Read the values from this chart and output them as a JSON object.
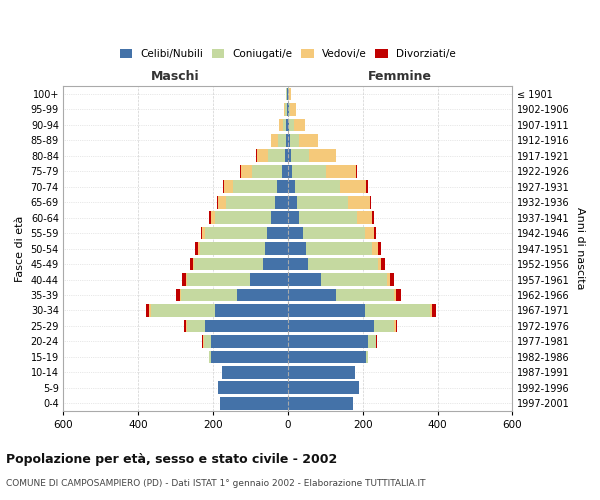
{
  "age_groups": [
    "0-4",
    "5-9",
    "10-14",
    "15-19",
    "20-24",
    "25-29",
    "30-34",
    "35-39",
    "40-44",
    "45-49",
    "50-54",
    "55-59",
    "60-64",
    "65-69",
    "70-74",
    "75-79",
    "80-84",
    "85-89",
    "90-94",
    "95-99",
    "100+"
  ],
  "birth_years": [
    "1997-2001",
    "1992-1996",
    "1987-1991",
    "1982-1986",
    "1977-1981",
    "1972-1976",
    "1967-1971",
    "1962-1966",
    "1957-1961",
    "1952-1956",
    "1947-1951",
    "1942-1946",
    "1937-1941",
    "1932-1936",
    "1927-1931",
    "1922-1926",
    "1917-1921",
    "1912-1916",
    "1907-1911",
    "1902-1906",
    "≤ 1901"
  ],
  "males": {
    "celibi": [
      180,
      185,
      175,
      205,
      205,
      220,
      195,
      135,
      100,
      65,
      60,
      55,
      45,
      35,
      30,
      15,
      8,
      5,
      4,
      3,
      2
    ],
    "coniugati": [
      0,
      0,
      0,
      5,
      20,
      50,
      170,
      150,
      170,
      185,
      175,
      165,
      150,
      130,
      115,
      80,
      45,
      20,
      10,
      4,
      2
    ],
    "vedovi": [
      0,
      0,
      0,
      0,
      1,
      3,
      5,
      3,
      3,
      3,
      5,
      8,
      10,
      20,
      25,
      30,
      30,
      20,
      10,
      4,
      1
    ],
    "divorziati": [
      0,
      0,
      0,
      0,
      2,
      5,
      8,
      10,
      10,
      8,
      8,
      5,
      5,
      3,
      2,
      2,
      1,
      1,
      0,
      0,
      0
    ]
  },
  "females": {
    "nubili": [
      175,
      190,
      180,
      210,
      215,
      230,
      205,
      130,
      90,
      55,
      50,
      40,
      30,
      25,
      20,
      12,
      8,
      5,
      4,
      3,
      2
    ],
    "coniugate": [
      0,
      0,
      0,
      5,
      20,
      55,
      175,
      155,
      175,
      185,
      175,
      165,
      155,
      135,
      120,
      90,
      50,
      25,
      12,
      4,
      2
    ],
    "vedove": [
      0,
      0,
      0,
      0,
      2,
      3,
      5,
      5,
      8,
      10,
      15,
      25,
      40,
      60,
      70,
      80,
      70,
      50,
      30,
      15,
      5
    ],
    "divorziate": [
      0,
      0,
      0,
      0,
      2,
      5,
      10,
      12,
      12,
      10,
      10,
      6,
      6,
      3,
      3,
      2,
      1,
      1,
      0,
      0,
      0
    ]
  },
  "color_celibi": "#4472a8",
  "color_coniugati": "#c5d9a0",
  "color_vedovi": "#f5c97a",
  "color_divorziati": "#c00000",
  "title": "Popolazione per età, sesso e stato civile - 2002",
  "subtitle": "COMUNE DI CAMPOSAMPIERO (PD) - Dati ISTAT 1° gennaio 2002 - Elaborazione TUTTITALIA.IT",
  "xlabel_left": "Maschi",
  "xlabel_right": "Femmine",
  "ylabel_left": "Fasce di età",
  "ylabel_right": "Anni di nascita",
  "xlim": 600,
  "background_color": "#ffffff",
  "grid_color": "#cccccc"
}
